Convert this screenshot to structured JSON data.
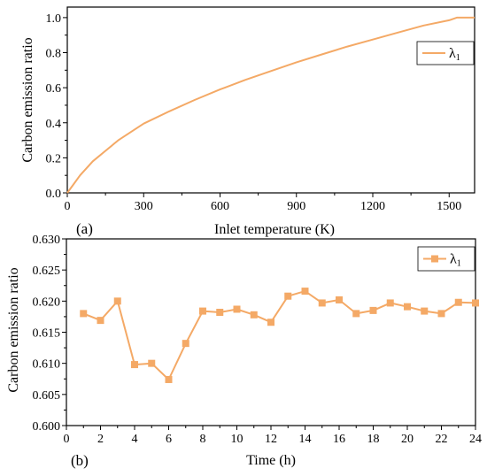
{
  "series_color": "#F4A966",
  "chart_data": [
    {
      "type": "line",
      "panel_label": "(a)",
      "xlabel": "Inlet temperature (K)",
      "ylabel": "Carbon emission ratio",
      "xlim": [
        0,
        1600
      ],
      "ylim": [
        0,
        1.06
      ],
      "xticks": [
        0,
        300,
        600,
        900,
        1200,
        1500
      ],
      "xtick_labels": [
        "0",
        "300",
        "600",
        "900",
        "1200",
        "1500"
      ],
      "yticks": [
        0,
        0.2,
        0.4,
        0.6,
        0.8,
        1.0
      ],
      "ytick_labels": [
        "0.0",
        "0.2",
        "0.4",
        "0.6",
        "0.8",
        "1.0"
      ],
      "grid": false,
      "legend_position": "top-right",
      "series": [
        {
          "name": "λ",
          "name_subscript": "1",
          "markers": false,
          "x": [
            0,
            25,
            50,
            100,
            150,
            200,
            300,
            400,
            500,
            600,
            700,
            800,
            900,
            1000,
            1100,
            1200,
            1300,
            1400,
            1500,
            1530,
            1550,
            1600
          ],
          "y": [
            0,
            0.05,
            0.1,
            0.18,
            0.24,
            0.3,
            0.395,
            0.465,
            0.53,
            0.59,
            0.645,
            0.695,
            0.745,
            0.79,
            0.835,
            0.875,
            0.915,
            0.955,
            0.985,
            1.0,
            1.0,
            1.0
          ]
        }
      ]
    },
    {
      "type": "line",
      "panel_label": "(b)",
      "xlabel": "Time (h)",
      "ylabel": "Carbon emission ratio",
      "xlim": [
        0,
        24
      ],
      "ylim": [
        0.6,
        0.63
      ],
      "xticks": [
        0,
        2,
        4,
        6,
        8,
        10,
        12,
        14,
        16,
        18,
        20,
        22,
        24
      ],
      "xtick_labels": [
        "0",
        "2",
        "4",
        "6",
        "8",
        "10",
        "12",
        "14",
        "16",
        "18",
        "20",
        "22",
        "24"
      ],
      "yticks": [
        0.6,
        0.605,
        0.61,
        0.615,
        0.62,
        0.625,
        0.63
      ],
      "ytick_labels": [
        "0.600",
        "0.605",
        "0.610",
        "0.615",
        "0.620",
        "0.625",
        "0.630"
      ],
      "grid": false,
      "legend_position": "top-right",
      "series": [
        {
          "name": "λ",
          "name_subscript": "1",
          "markers": true,
          "marker": "square",
          "x": [
            1,
            2,
            3,
            4,
            5,
            6,
            7,
            8,
            9,
            10,
            11,
            12,
            13,
            14,
            15,
            16,
            17,
            18,
            19,
            20,
            21,
            22,
            23,
            24
          ],
          "y": [
            0.618,
            0.6169,
            0.62,
            0.6098,
            0.61,
            0.6074,
            0.6132,
            0.6184,
            0.6182,
            0.6187,
            0.6178,
            0.6166,
            0.6208,
            0.6216,
            0.6197,
            0.6202,
            0.618,
            0.6185,
            0.6197,
            0.6191,
            0.6184,
            0.618,
            0.6198,
            0.6197
          ]
        }
      ]
    }
  ]
}
